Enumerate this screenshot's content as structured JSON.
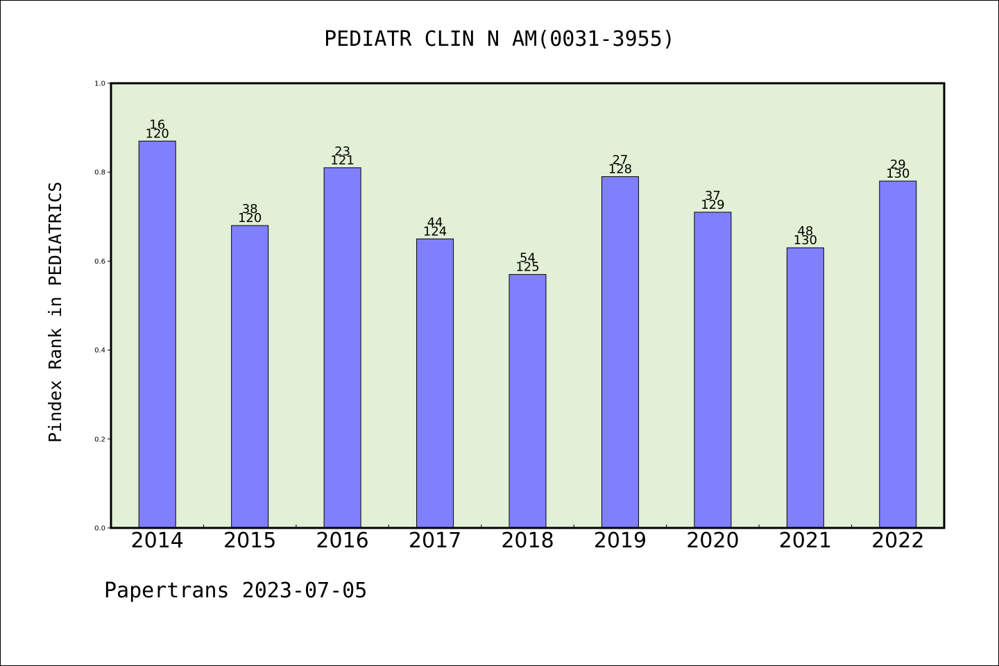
{
  "footer": "Papertrans 2023-07-05",
  "chart_data": {
    "type": "bar",
    "title": "PEDIATR CLIN N AM(0031-3955)",
    "xlabel": "",
    "ylabel": "Pindex Rank in PEDIATRICS",
    "ylim": [
      0,
      1.0
    ],
    "yticks": [
      "0.0",
      "0.2",
      "0.4",
      "0.6",
      "0.8",
      "1.0"
    ],
    "grid": false,
    "categories": [
      "2014",
      "2015",
      "2016",
      "2017",
      "2018",
      "2019",
      "2020",
      "2021",
      "2022"
    ],
    "values": [
      0.87,
      0.68,
      0.81,
      0.65,
      0.57,
      0.79,
      0.71,
      0.63,
      0.78
    ],
    "rank_labels": [
      "16",
      "38",
      "23",
      "44",
      "54",
      "27",
      "37",
      "48",
      "29"
    ],
    "total_labels": [
      "120",
      "120",
      "121",
      "124",
      "125",
      "128",
      "129",
      "130",
      "130"
    ],
    "colors": {
      "bar": "#8080ff",
      "plot_background": "#e2f0d6",
      "axis": "#000000"
    }
  }
}
